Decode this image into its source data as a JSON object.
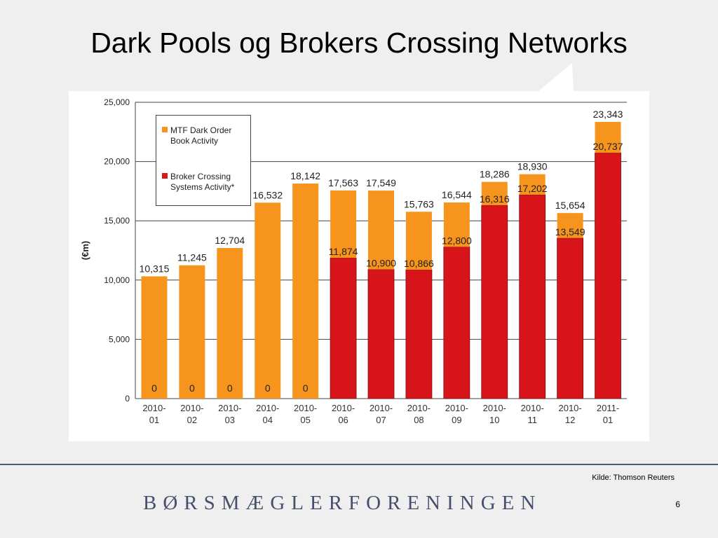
{
  "slide": {
    "title": "Dark Pools og Brokers Crossing Networks",
    "source": "Kilde: Thomson Reuters",
    "brand": "BØRSMÆGLERFORENINGEN",
    "page_number": "6"
  },
  "colors": {
    "mtf": "#f7941d",
    "broker": "#d7141a",
    "brand": "#46506e",
    "rule": "#4e5b78"
  },
  "chart_data": {
    "type": "bar",
    "stacked": true,
    "ylabel": "(€m)",
    "ylim": [
      0,
      25000
    ],
    "yticks": [
      0,
      5000,
      10000,
      15000,
      20000,
      25000
    ],
    "ytick_labels": [
      "0",
      "5,000",
      "10,000",
      "15,000",
      "20,000",
      "25,000"
    ],
    "grid": "horizontal",
    "legend_position": "top-left",
    "categories": [
      [
        "2010-",
        "01"
      ],
      [
        "2010-",
        "02"
      ],
      [
        "2010-",
        "03"
      ],
      [
        "2010-",
        "04"
      ],
      [
        "2010-",
        "05"
      ],
      [
        "2010-",
        "06"
      ],
      [
        "2010-",
        "07"
      ],
      [
        "2010-",
        "08"
      ],
      [
        "2010-",
        "09"
      ],
      [
        "2010-",
        "10"
      ],
      [
        "2010-",
        "11"
      ],
      [
        "2010-",
        "12"
      ],
      [
        "2011-",
        "01"
      ]
    ],
    "series": [
      {
        "name": "MTF Dark Order Book Activity",
        "legend_lines": [
          "MTF Dark Order",
          "Book Activity"
        ],
        "values": [
          10315,
          11245,
          12704,
          16532,
          18142,
          5689,
          6649,
          4897,
          3744,
          1970,
          1728,
          2105,
          2606
        ]
      },
      {
        "name": "Broker Crossing Systems Activity*",
        "legend_lines": [
          "Broker Crossing",
          "Systems Activity*"
        ],
        "values": [
          0,
          0,
          0,
          0,
          0,
          11874,
          10900,
          10866,
          12800,
          16316,
          17202,
          13549,
          20737
        ]
      }
    ],
    "total_labels": [
      "10,315",
      "11,245",
      "12,704",
      "16,532",
      "18,142",
      "17,563",
      "17,549",
      "15,763",
      "16,544",
      "18,286",
      "18,930",
      "15,654",
      "23,343"
    ],
    "broker_labels": [
      "0",
      "0",
      "0",
      "0",
      "0",
      "11,874",
      "10,900",
      "10,866",
      "12,800",
      "16,316",
      "17,202",
      "13,549",
      "20,737"
    ]
  }
}
